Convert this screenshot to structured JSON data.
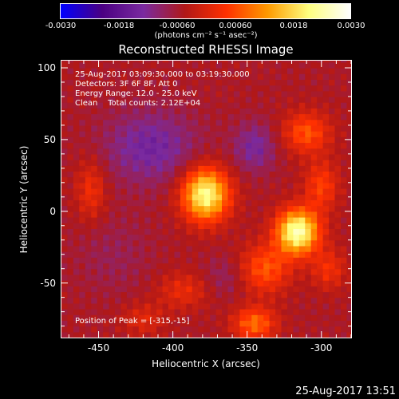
{
  "colorbar": {
    "tick_labels": [
      "-0.0030",
      "-0.0018",
      "-0.00060",
      "0.00060",
      "0.0018",
      "0.0030"
    ],
    "units": "(photons cm⁻² s⁻¹ asec⁻²)",
    "range": [
      -0.003,
      0.003
    ],
    "colors": [
      "#0000ff",
      "#4b0082",
      "#7a2aa0",
      "#b01818",
      "#ff3000",
      "#ff9a00",
      "#ffff80",
      "#ffffff"
    ]
  },
  "title": "Reconstructed RHESSI Image",
  "info": {
    "time_range": "25-Aug-2017 03:09:30.000 to 03:19:30.000",
    "detectors": "Detectors: 3F 6F 8F, Att 0",
    "energy_range": "Energy Range: 12.0 - 25.0 keV",
    "clean": "Clean    Total counts: 2.12E+04",
    "peak": "Position of Peak = [-315,-15]"
  },
  "timestamp": "25-Aug-2017 13:51",
  "chart_data": {
    "type": "heatmap",
    "title": "Reconstructed RHESSI Image",
    "xlabel": "Heliocentric X (arcsec)",
    "ylabel": "Heliocentric Y (arcsec)",
    "xlim": [
      -475,
      -280
    ],
    "ylim": [
      -88,
      105
    ],
    "x_ticks": [
      -450,
      -400,
      -350,
      -300
    ],
    "y_ticks": [
      -50,
      0,
      50,
      100
    ],
    "x_tick_labels": [
      "-450",
      "-400",
      "-350",
      "-300"
    ],
    "y_tick_labels": [
      "-50",
      "0",
      "50",
      "100"
    ],
    "peak": [
      -315,
      -15
    ],
    "sources": [
      {
        "x": -378,
        "y": 12,
        "amp": 0.0028,
        "sx": 11,
        "sy": 13
      },
      {
        "x": -316,
        "y": -14,
        "amp": 0.003,
        "sx": 10,
        "sy": 11
      },
      {
        "x": -338,
        "y": -40,
        "amp": 0.0012,
        "sx": 12,
        "sy": 12
      },
      {
        "x": -310,
        "y": 55,
        "amp": 0.0012,
        "sx": 11,
        "sy": 10
      },
      {
        "x": -300,
        "y": 18,
        "amp": 0.001,
        "sx": 8,
        "sy": 12
      },
      {
        "x": -345,
        "y": -78,
        "amp": 0.0014,
        "sx": 10,
        "sy": 8
      },
      {
        "x": -295,
        "y": -40,
        "amp": 0.0008,
        "sx": 8,
        "sy": 10
      },
      {
        "x": -393,
        "y": -55,
        "amp": 0.0007,
        "sx": 12,
        "sy": 9
      },
      {
        "x": -420,
        "y": -75,
        "amp": 0.0006,
        "sx": 10,
        "sy": 8
      },
      {
        "x": -455,
        "y": 15,
        "amp": 0.0008,
        "sx": 7,
        "sy": 15
      },
      {
        "x": -415,
        "y": 45,
        "amp": -0.0009,
        "sx": 22,
        "sy": 18
      },
      {
        "x": -345,
        "y": 45,
        "amp": -0.0008,
        "sx": 10,
        "sy": 12
      },
      {
        "x": -365,
        "y": -45,
        "amp": -0.0004,
        "sx": 10,
        "sy": 10
      },
      {
        "x": -440,
        "y": -30,
        "amp": -0.0003,
        "sx": 18,
        "sy": 20
      }
    ]
  }
}
